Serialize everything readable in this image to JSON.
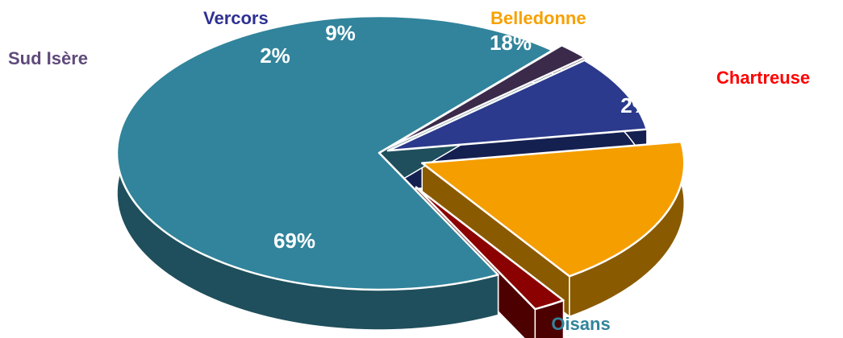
{
  "chart_data": {
    "type": "pie",
    "style": "3d-exploded",
    "slices": [
      {
        "name": "Oisans",
        "value": 69,
        "label": "69%",
        "color": "#31849b",
        "side_color": "#1f4f5c",
        "name_color": "#31849b"
      },
      {
        "name": "Sud Isère",
        "value": 2,
        "label": "2%",
        "color": "#3b2a4a",
        "side_color": "#241a2e",
        "name_color": "#604a7b"
      },
      {
        "name": "Vercors",
        "value": 9,
        "label": "9%",
        "color": "#2b3a8c",
        "side_color": "#142050",
        "name_color": "#2e3192"
      },
      {
        "name": "Belledonne",
        "value": 18,
        "label": "18%",
        "color": "#f59e00",
        "side_color": "#8a5a00",
        "name_color": "#f7a100"
      },
      {
        "name": "Chartreuse",
        "value": 2,
        "label": "2%",
        "color": "#8b0000",
        "side_color": "#4d0000",
        "name_color": "#ff0000"
      }
    ]
  }
}
